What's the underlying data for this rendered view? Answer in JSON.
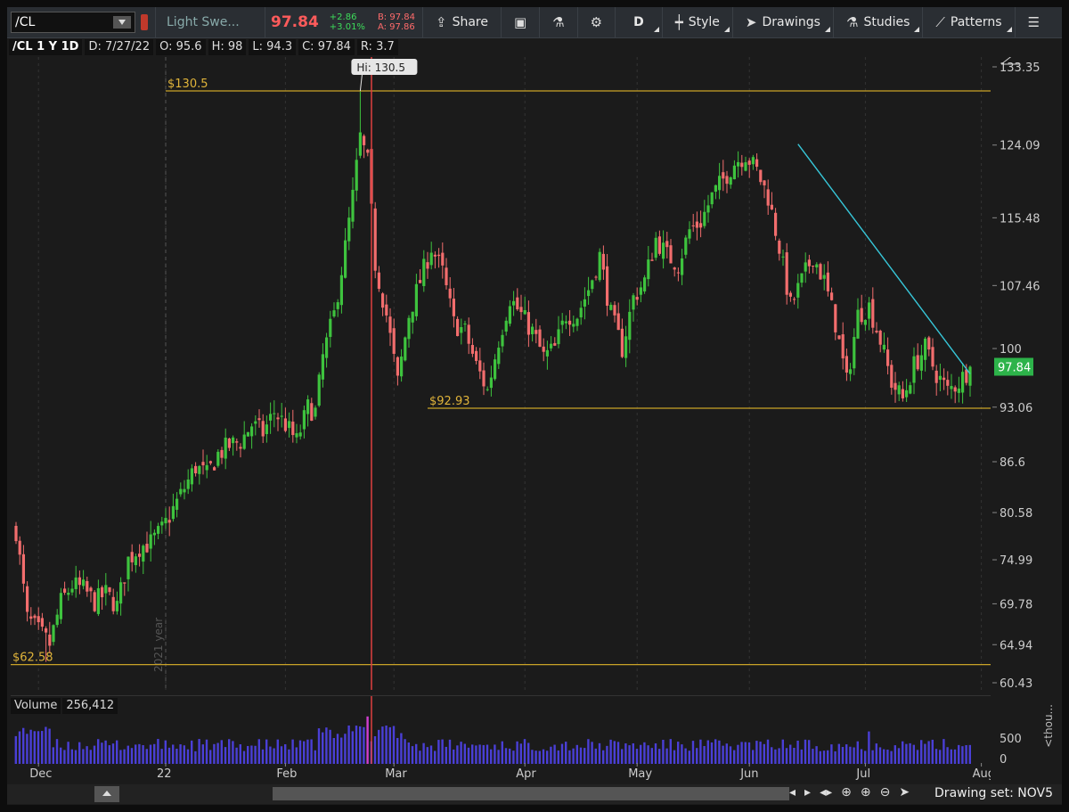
{
  "toolbar": {
    "symbol": "/CL",
    "description": "Light Swe...",
    "last": "97.84",
    "change": "+2.86",
    "change_pct": "+3.01%",
    "bid": "B: 97.84",
    "ask": "A: 97.86",
    "share_label": "Share",
    "timeframe_label": "D",
    "style_label": "Style",
    "drawings_label": "Drawings",
    "studies_label": "Studies",
    "patterns_label": "Patterns"
  },
  "info": {
    "symbol": "/CL 1 Y 1D",
    "date": "D: 7/27/22",
    "open": "O: 95.6",
    "high": "H: 98",
    "low": "L: 94.3",
    "close": "C: 97.84",
    "range": "R: 3.7"
  },
  "volume_panel": {
    "label": "Volume",
    "value": "256,412",
    "unit": "<thou..."
  },
  "bottom": {
    "drawing_set": "Drawing set: NOV5"
  },
  "chart_data": {
    "type": "candlestick",
    "title": "/CL 1 Y 1D",
    "ylim": [
      60.43,
      133.35
    ],
    "ytick_labels": [
      "133.35",
      "124.09",
      "115.48",
      "107.46",
      "100",
      "93.06",
      "86.6",
      "80.58",
      "74.99",
      "69.78",
      "64.94",
      "60.43"
    ],
    "x_tick_labels": [
      "Dec",
      "22",
      "Feb",
      "Mar",
      "Apr",
      "May",
      "Jun",
      "Jul",
      "Aug"
    ],
    "price_levels": [
      {
        "label": "$130.5",
        "value": 130.5
      },
      {
        "label": "$92.93",
        "value": 92.93
      },
      {
        "label": "$62.58",
        "value": 62.58
      }
    ],
    "high_marker": "Hi: 130.5",
    "last_price": "97.84",
    "year_marker": "2021 year",
    "volume_ticks": [
      "500",
      "0"
    ],
    "close_path": [
      [
        0,
        78.5
      ],
      [
        3,
        68
      ],
      [
        6,
        66.5
      ],
      [
        9,
        65
      ],
      [
        12,
        70
      ],
      [
        15,
        72
      ],
      [
        18,
        71.5
      ],
      [
        21,
        70
      ],
      [
        24,
        71
      ],
      [
        27,
        69.5
      ],
      [
        30,
        75
      ],
      [
        33,
        76.5
      ],
      [
        36,
        77
      ],
      [
        39,
        78.5
      ],
      [
        42,
        81
      ],
      [
        45,
        83.5
      ],
      [
        48,
        86
      ],
      [
        51,
        85
      ],
      [
        54,
        87.5
      ],
      [
        57,
        88.5
      ],
      [
        60,
        89
      ],
      [
        63,
        91
      ],
      [
        66,
        90
      ],
      [
        69,
        92.5
      ],
      [
        72,
        91
      ],
      [
        75,
        89
      ],
      [
        78,
        93
      ],
      [
        80,
        92.5
      ],
      [
        82,
        99
      ],
      [
        85,
        104
      ],
      [
        88,
        112
      ],
      [
        90,
        118
      ],
      [
        92,
        125
      ],
      [
        94,
        122
      ],
      [
        96,
        110
      ],
      [
        99,
        104
      ],
      [
        102,
        96
      ],
      [
        105,
        104
      ],
      [
        108,
        108
      ],
      [
        111,
        112
      ],
      [
        114,
        109
      ],
      [
        117,
        103
      ],
      [
        120,
        102
      ],
      [
        123,
        98
      ],
      [
        126,
        95
      ],
      [
        129,
        101
      ],
      [
        132,
        106
      ],
      [
        135,
        104
      ],
      [
        138,
        102
      ],
      [
        141,
        99
      ],
      [
        144,
        100
      ],
      [
        147,
        104
      ],
      [
        150,
        104
      ],
      [
        153,
        107
      ],
      [
        156,
        111
      ],
      [
        159,
        104
      ],
      [
        162,
        100
      ],
      [
        165,
        106
      ],
      [
        168,
        108
      ],
      [
        171,
        113
      ],
      [
        174,
        111
      ],
      [
        177,
        110
      ],
      [
        180,
        114
      ],
      [
        183,
        115
      ],
      [
        186,
        118
      ],
      [
        189,
        120
      ],
      [
        192,
        122
      ],
      [
        195,
        123
      ],
      [
        198,
        121
      ],
      [
        201,
        118
      ],
      [
        204,
        112
      ],
      [
        207,
        105
      ],
      [
        210,
        108
      ],
      [
        213,
        111
      ],
      [
        216,
        108
      ],
      [
        219,
        103
      ],
      [
        222,
        96
      ],
      [
        225,
        104
      ],
      [
        228,
        105
      ],
      [
        231,
        101
      ],
      [
        234,
        96
      ],
      [
        237,
        94
      ],
      [
        240,
        98
      ],
      [
        243,
        100
      ],
      [
        246,
        97
      ],
      [
        249,
        95
      ],
      [
        252,
        96
      ],
      [
        255,
        97.84
      ]
    ]
  }
}
